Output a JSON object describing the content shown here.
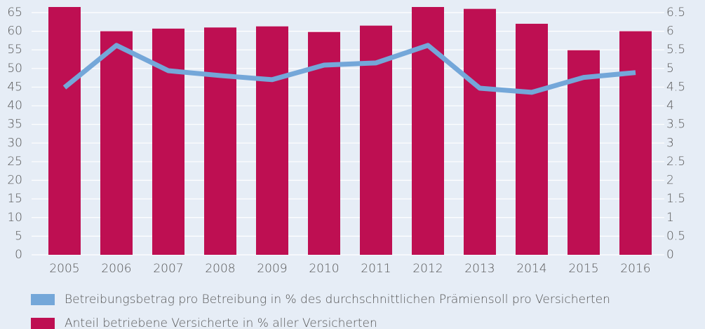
{
  "chart_data": {
    "type": "bar_line",
    "categories": [
      "2005",
      "2006",
      "2007",
      "2008",
      "2009",
      "2010",
      "2011",
      "2012",
      "2013",
      "2014",
      "2015",
      "2016"
    ],
    "series": [
      {
        "name": "Betreibungsbetrag pro Betreibung in % des durchschnittlichen Prämiensoll pro Versicherten",
        "color": "#74a7d9",
        "type": "line",
        "axis": "y2",
        "values": [
          4.49,
          5.62,
          4.94,
          4.81,
          4.7,
          5.09,
          5.15,
          5.62,
          4.47,
          4.36,
          4.76,
          4.89
        ]
      },
      {
        "name": "Anteil betriebene Versicherte in % aller Versicherten",
        "color": "#be0f52",
        "type": "bar",
        "axis": "y",
        "values": [
          66.5,
          60,
          60.7,
          61,
          61.3,
          59.8,
          61.5,
          66.5,
          66,
          62,
          54.9,
          60
        ]
      }
    ],
    "ylim": [
      0,
      66.5
    ],
    "yticks": [
      0,
      5,
      10,
      15,
      20,
      25,
      30,
      35,
      40,
      45,
      50,
      55,
      60,
      65
    ],
    "y2lim": [
      0,
      6.65
    ],
    "y2ticks": [
      0,
      0.5,
      1,
      1.5,
      2,
      2.5,
      3,
      3.5,
      4,
      4.5,
      5,
      5.5,
      6,
      6.5
    ],
    "grid": true,
    "legend": "bottom"
  }
}
